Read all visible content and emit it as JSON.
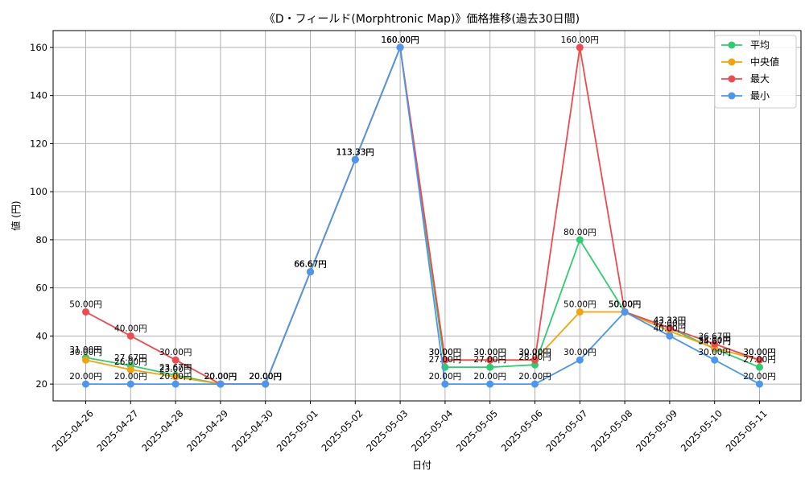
{
  "chart_data": {
    "type": "line",
    "title": "《D・フィールド(Morphtronic Map)》価格推移(過去30日間)",
    "xlabel": "日付",
    "ylabel": "値 (円)",
    "ylim": [
      13,
      167
    ],
    "yticks": [
      20,
      40,
      60,
      80,
      100,
      120,
      140,
      160
    ],
    "grid": true,
    "legend_position": "top-right",
    "label_suffix": "円",
    "categories": [
      "2025-04-26",
      "2025-04-27",
      "2025-04-28",
      "2025-04-29",
      "2025-04-30",
      "2025-05-01",
      "2025-05-02",
      "2025-05-03",
      "2025-05-04",
      "2025-05-05",
      "2025-05-06",
      "2025-05-07",
      "2025-05-08",
      "2025-05-09",
      "2025-05-10",
      "2025-05-11"
    ],
    "series": [
      {
        "name": "平均",
        "color": "#2ecc71",
        "values": [
          31.0,
          27.67,
          23.67,
          20.0,
          20.0,
          66.67,
          113.33,
          160.0,
          27.0,
          27.0,
          28.0,
          80.0,
          50.0,
          43.33,
          34.67,
          27.0
        ]
      },
      {
        "name": "中央値",
        "color": "#f5a30a",
        "values": [
          30.0,
          26.0,
          23.0,
          20.0,
          20.0,
          66.67,
          113.33,
          160.0,
          30.0,
          30.0,
          30.0,
          50.0,
          50.0,
          42.0,
          35.0,
          30.0
        ]
      },
      {
        "name": "最大",
        "color": "#ef4a4f",
        "values": [
          50.0,
          40.0,
          30.0,
          20.0,
          20.0,
          66.67,
          113.33,
          160.0,
          30.0,
          30.0,
          30.0,
          160.0,
          50.0,
          43.33,
          36.67,
          30.0
        ]
      },
      {
        "name": "最小",
        "color": "#4a96f0",
        "values": [
          20.0,
          20.0,
          20.0,
          20.0,
          20.0,
          66.67,
          113.33,
          160.0,
          20.0,
          20.0,
          20.0,
          30.0,
          50.0,
          40.0,
          30.0,
          20.0
        ]
      }
    ]
  }
}
